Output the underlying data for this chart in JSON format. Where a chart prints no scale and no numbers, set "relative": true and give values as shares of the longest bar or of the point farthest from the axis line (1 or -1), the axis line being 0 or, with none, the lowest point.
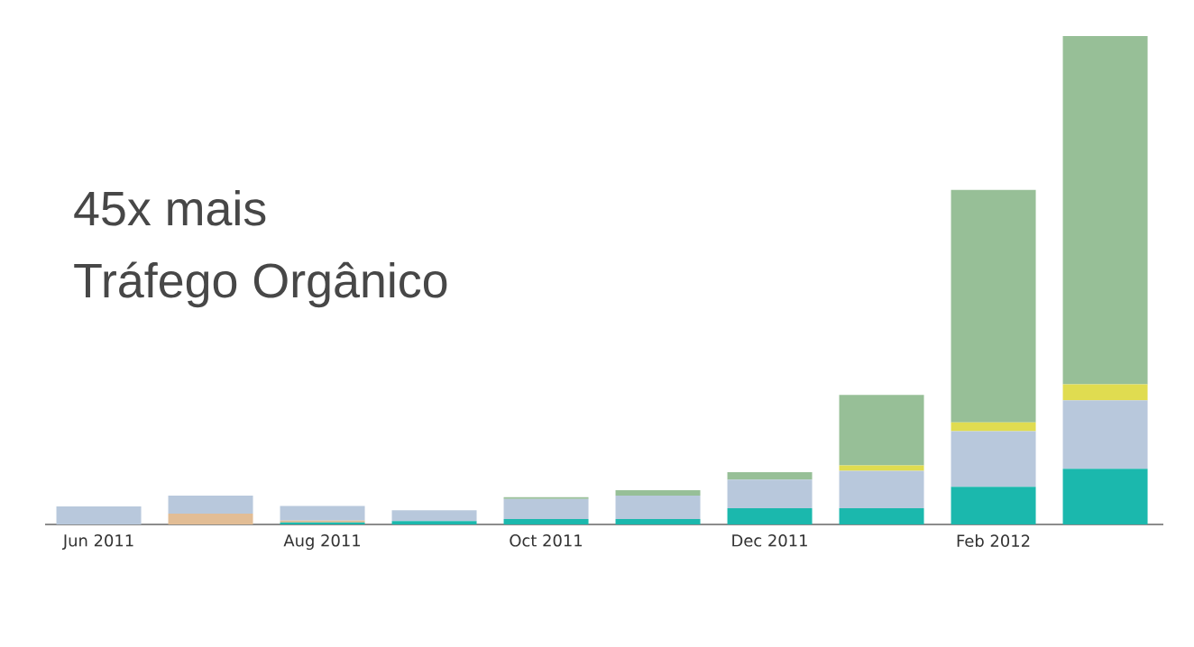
{
  "chart_data": {
    "type": "bar",
    "title": "45x mais",
    "subtitle": "Tráfego Orgânico",
    "stacked": true,
    "relative": true,
    "categories": [
      "Jun 2011",
      null,
      "Aug 2011",
      null,
      "Oct 2011",
      null,
      "Dec 2011",
      null,
      "Feb 2012",
      null
    ],
    "series": [
      {
        "color": "#1bb8ad",
        "values": [
          0,
          0,
          0.004,
          0.007,
          0.011,
          0.011,
          0.033,
          0.033,
          0.077,
          0.114
        ]
      },
      {
        "color": "#e2bd95",
        "values": [
          0,
          0.022,
          0.004,
          0,
          0,
          0,
          0,
          0,
          0,
          0
        ]
      },
      {
        "color": "#b8c8dc",
        "values": [
          0.037,
          0.037,
          0.03,
          0.022,
          0.041,
          0.048,
          0.059,
          0.077,
          0.114,
          0.14
        ]
      },
      {
        "color": "#e0dc50",
        "values": [
          0,
          0,
          0,
          0,
          0,
          0,
          0,
          0.011,
          0.018,
          0.033
        ]
      },
      {
        "color": "#97bf97",
        "values": [
          0,
          0,
          0,
          0,
          0.004,
          0.011,
          0.015,
          0.144,
          0.476,
          0.713
        ]
      }
    ]
  }
}
